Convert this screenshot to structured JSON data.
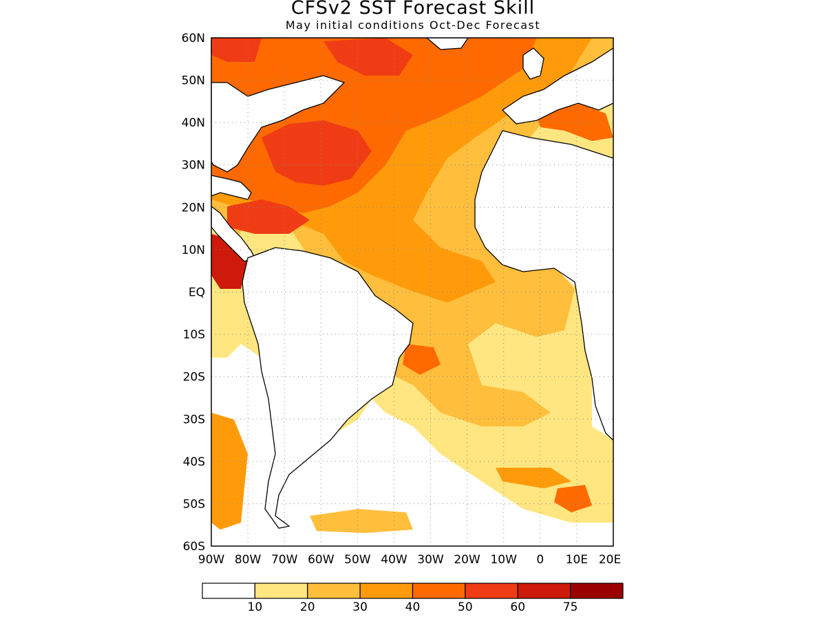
{
  "title": "CFSv2 SST Forecast Skill",
  "subtitle": "May initial conditions  Oct-Dec Forecast",
  "map": {
    "lon_range": [
      -90,
      20
    ],
    "lat_range": [
      -60,
      60
    ],
    "lat_ticks": [
      "60N",
      "50N",
      "40N",
      "30N",
      "20N",
      "10N",
      "EQ",
      "10S",
      "20S",
      "30S",
      "40S",
      "50S",
      "60S"
    ],
    "lon_ticks": [
      "90W",
      "80W",
      "70W",
      "60W",
      "50W",
      "40W",
      "30W",
      "20W",
      "10W",
      "0",
      "10E",
      "20E"
    ],
    "gridlines": "dotted"
  },
  "colorbar": {
    "colors": [
      "#ffffff",
      "#ffe680",
      "#ffbe3c",
      "#ff9b0a",
      "#ff6a00",
      "#f03c14",
      "#cd1a0a",
      "#9b0000"
    ],
    "labels": [
      "10",
      "20",
      "30",
      "40",
      "50",
      "60",
      "75"
    ]
  }
}
